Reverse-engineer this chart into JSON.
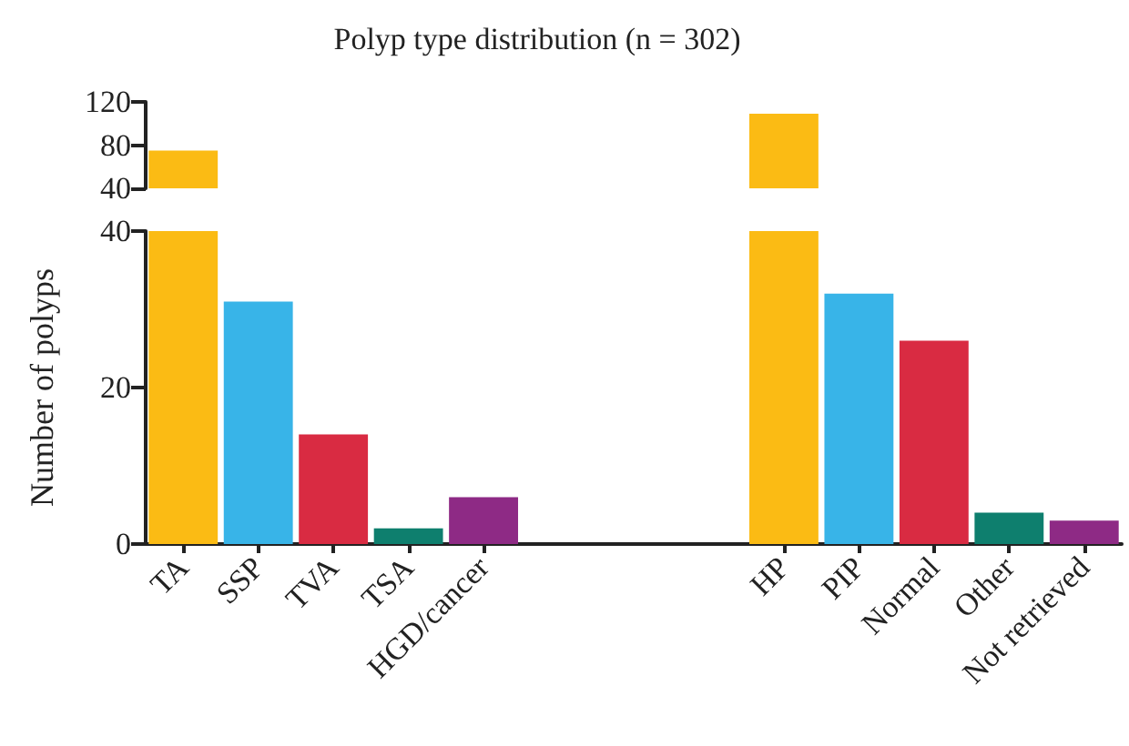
{
  "chart_data": [
    {
      "type": "bar",
      "title": "Polyp type distribution (n = 302)",
      "categories": [
        "TA",
        "SSP",
        "TVA",
        "TSA",
        "HGD/cancer",
        null,
        null,
        null,
        "HP",
        "PIP",
        "Normal",
        "Other",
        "Not retrieved"
      ],
      "values": [
        75,
        null,
        null,
        null,
        null,
        null,
        null,
        null,
        109,
        null,
        null,
        null,
        null
      ],
      "colors": [
        "#fbbb14",
        "#38b4e8",
        "#d92b42",
        "#0e7f6e",
        "#8e2a85",
        "#ffffff",
        "#ffffff",
        "#ffffff",
        "#fbbb14",
        "#38b4e8",
        "#d92b42",
        "#0e7f6e",
        "#8e2a85"
      ],
      "ylim": [
        40,
        120
      ],
      "yticks": [
        40,
        80,
        120
      ],
      "tick_labels": "y"
    },
    {
      "type": "bar",
      "ylabel": "Number of polyps",
      "categories": [
        "TA",
        "SSP",
        "TVA",
        "TSA",
        "HGD/cancer",
        null,
        null,
        null,
        "HP",
        "PIP",
        "Normal",
        "Other",
        "Not retrieved"
      ],
      "values": [
        40,
        31,
        14,
        2,
        6,
        null,
        null,
        null,
        40,
        32,
        26,
        4,
        3
      ],
      "colors": [
        "#fbbb14",
        "#38b4e8",
        "#d92b42",
        "#0e7f6e",
        "#8e2a85",
        "#ffffff",
        "#ffffff",
        "#ffffff",
        "#fbbb14",
        "#38b4e8",
        "#d92b42",
        "#0e7f6e",
        "#8e2a85"
      ],
      "ylim": [
        0,
        40
      ],
      "yticks": [
        0,
        20,
        40
      ]
    }
  ]
}
